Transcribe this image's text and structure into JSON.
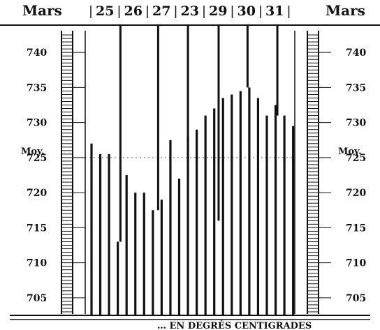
{
  "chart_data": {
    "type": "bar",
    "title": "",
    "caption": "… EN DEGRÉS CENTIGRADES",
    "month_label_left": "Mars",
    "month_label_right": "Mars",
    "day_labels": [
      "25",
      "26",
      "27",
      "23",
      "29",
      "30",
      "31"
    ],
    "mean_label": "Moy.",
    "y_ticks": [
      740,
      735,
      730,
      725,
      720,
      715,
      710,
      705
    ],
    "ylim": [
      702.5,
      743.5
    ],
    "mean_value": 725,
    "series": [
      {
        "values": [
          727,
          725.5,
          725.5,
          713,
          722.5,
          720,
          720,
          717.5,
          719,
          727.5,
          722,
          728,
          729,
          731,
          732,
          733.5,
          734,
          734.5,
          735,
          733.5,
          731,
          732.5,
          731,
          729.5
        ]
      }
    ],
    "event_lines": [
      {
        "x_index": 3.3,
        "top": 744,
        "bottom": 713
      },
      {
        "x_index": 7.6,
        "top": 744,
        "bottom": 717.5
      },
      {
        "x_index": 11.0,
        "top": 744,
        "bottom": 722
      },
      {
        "x_index": 14.5,
        "top": 744,
        "bottom": 716
      },
      {
        "x_index": 17.8,
        "top": 744,
        "bottom": 735
      },
      {
        "x_index": 21.2,
        "top": 744,
        "bottom": 731
      }
    ]
  }
}
